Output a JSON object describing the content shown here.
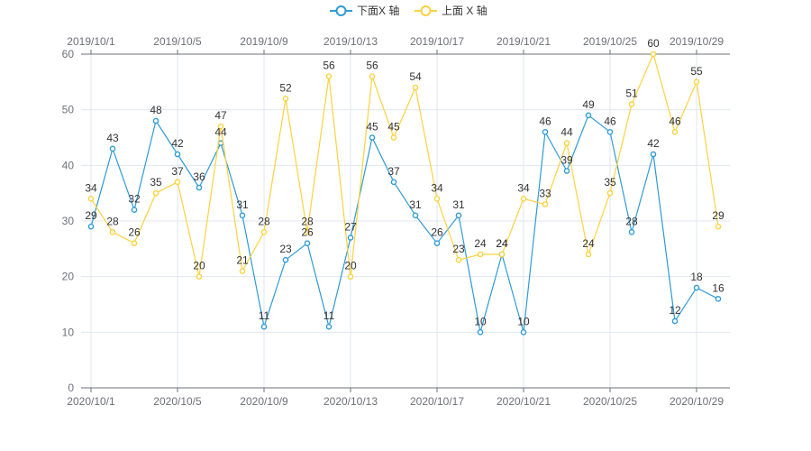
{
  "chart_data": {
    "type": "line",
    "legend_position": "top-center",
    "grid": true,
    "ylim": [
      0,
      60
    ],
    "y_ticks": [
      0,
      10,
      20,
      30,
      40,
      50,
      60
    ],
    "x_bottom_tick_labels": [
      "2020/10/1",
      "2020/10/5",
      "2020/10/9",
      "2020/10/13",
      "2020/10/17",
      "2020/10/21",
      "2020/10/25",
      "2020/10/29"
    ],
    "x_top_tick_labels": [
      "2019/10/1",
      "2019/10/5",
      "2019/10/9",
      "2019/10/13",
      "2019/10/17",
      "2019/10/21",
      "2019/10/25",
      "2019/10/29"
    ],
    "series": [
      {
        "name": "下面X 轴",
        "axis": "bottom",
        "color": "#2f9bd6",
        "x_start": "2020/10/1",
        "values": [
          29,
          43,
          32,
          48,
          42,
          36,
          44,
          31,
          11,
          23,
          26,
          11,
          27,
          45,
          37,
          31,
          26,
          31,
          10,
          24,
          10,
          46,
          39,
          49,
          46,
          28,
          42,
          12,
          18,
          16
        ]
      },
      {
        "name": "上面 X 轴",
        "axis": "top",
        "color": "#fcd23f",
        "x_start": "2019/10/1",
        "values": [
          34,
          28,
          26,
          35,
          37,
          20,
          47,
          21,
          28,
          52,
          28,
          56,
          20,
          56,
          45,
          54,
          34,
          23,
          24,
          24,
          34,
          33,
          44,
          24,
          35,
          51,
          60,
          46,
          55,
          29
        ]
      }
    ]
  }
}
